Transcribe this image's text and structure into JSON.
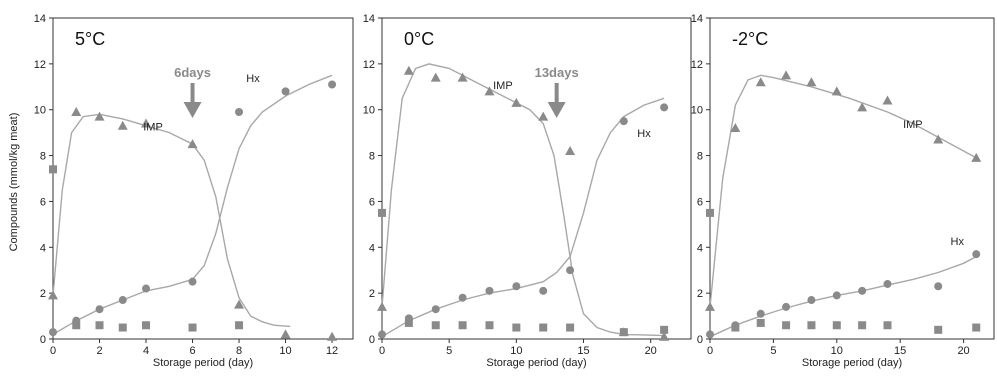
{
  "figure": {
    "ylabel": "Compounds (mmol/kg meat)",
    "xlabel": "Storage period (day)"
  },
  "colors": {
    "marker": "#8a8a8a",
    "curve": "#a8a8a8",
    "arrow": "#8a8a8a",
    "frame": "#333333"
  },
  "chart_data": [
    {
      "type": "scatter",
      "title": "5°C",
      "xlabel": "Storage period (day)",
      "ylabel": "Compounds (mmol/kg meat)",
      "xlim": [
        0,
        12.9
      ],
      "ylim": [
        0,
        14
      ],
      "xticks": [
        0,
        2,
        4,
        6,
        8,
        10,
        12
      ],
      "yticks": [
        0,
        2,
        4,
        6,
        8,
        10,
        12,
        14
      ],
      "grid": false,
      "arrow": {
        "label": "6days",
        "x": 6
      },
      "series": [
        {
          "name": "IMP",
          "marker": "triangle",
          "x": [
            0,
            1,
            2,
            3,
            4,
            6,
            8,
            10,
            12
          ],
          "y": [
            1.9,
            9.9,
            9.7,
            9.3,
            9.4,
            8.5,
            1.5,
            0.2,
            0.1
          ],
          "curve": [
            [
              0,
              1.9
            ],
            [
              0.4,
              6.5
            ],
            [
              0.8,
              9.0
            ],
            [
              1.3,
              9.7
            ],
            [
              2,
              9.8
            ],
            [
              3,
              9.6
            ],
            [
              4,
              9.3
            ],
            [
              5,
              9.0
            ],
            [
              6,
              8.5
            ],
            [
              6.5,
              7.8
            ],
            [
              7,
              6.2
            ],
            [
              7.5,
              3.5
            ],
            [
              8,
              1.8
            ],
            [
              8.5,
              1.0
            ],
            [
              9,
              0.75
            ],
            [
              9.5,
              0.6
            ],
            [
              10.2,
              0.55
            ]
          ]
        },
        {
          "name": "Hx",
          "marker": "circle",
          "x": [
            0,
            1,
            2,
            3,
            4,
            6,
            8,
            10,
            12
          ],
          "y": [
            0.3,
            0.8,
            1.3,
            1.7,
            2.2,
            2.5,
            9.9,
            10.8,
            11.1
          ],
          "curve": [
            [
              0,
              0.2
            ],
            [
              1,
              0.8
            ],
            [
              2,
              1.3
            ],
            [
              3,
              1.7
            ],
            [
              4,
              2.1
            ],
            [
              5,
              2.3
            ],
            [
              6,
              2.6
            ],
            [
              6.5,
              3.2
            ],
            [
              7,
              4.6
            ],
            [
              7.5,
              6.6
            ],
            [
              8,
              8.3
            ],
            [
              8.5,
              9.3
            ],
            [
              9,
              9.9
            ],
            [
              10,
              10.6
            ],
            [
              11,
              11.1
            ],
            [
              12,
              11.5
            ]
          ]
        },
        {
          "name": "",
          "marker": "square",
          "x": [
            0,
            1,
            2,
            3,
            4,
            6,
            8
          ],
          "y": [
            7.4,
            0.6,
            0.6,
            0.5,
            0.6,
            0.5,
            0.6
          ]
        }
      ],
      "annotations": [
        {
          "text": "Hx",
          "x": 8.6,
          "y": 11.2
        },
        {
          "text": "IMP",
          "x": 4.3,
          "y": 9.1
        }
      ]
    },
    {
      "type": "scatter",
      "title": "0°C",
      "xlabel": "Storage period (day)",
      "ylabel": "",
      "xlim": [
        0,
        23
      ],
      "ylim": [
        0,
        14
      ],
      "xticks": [
        0,
        5,
        10,
        15,
        20
      ],
      "yticks": [
        0,
        2,
        4,
        6,
        8,
        10,
        12,
        14
      ],
      "grid": false,
      "arrow": {
        "label": "13days",
        "x": 13
      },
      "series": [
        {
          "name": "IMP",
          "marker": "triangle",
          "x": [
            0,
            2,
            4,
            6,
            8,
            10,
            12,
            14,
            18,
            21
          ],
          "y": [
            1.4,
            11.7,
            11.4,
            11.4,
            10.8,
            10.3,
            9.7,
            8.2,
            0.3,
            0.1
          ],
          "curve": [
            [
              0,
              1.4
            ],
            [
              0.7,
              6.5
            ],
            [
              1.5,
              10.5
            ],
            [
              2.5,
              11.8
            ],
            [
              3.5,
              12.0
            ],
            [
              5,
              11.8
            ],
            [
              7,
              11.2
            ],
            [
              9,
              10.6
            ],
            [
              11,
              10.0
            ],
            [
              12,
              9.4
            ],
            [
              12.8,
              8.0
            ],
            [
              13.5,
              5.5
            ],
            [
              14.2,
              2.8
            ],
            [
              15,
              1.1
            ],
            [
              16,
              0.5
            ],
            [
              17,
              0.3
            ],
            [
              18,
              0.2
            ],
            [
              21,
              0.15
            ]
          ]
        },
        {
          "name": "Hx",
          "marker": "circle",
          "x": [
            0,
            2,
            4,
            6,
            8,
            10,
            12,
            14,
            18,
            21
          ],
          "y": [
            0.2,
            0.9,
            1.3,
            1.8,
            2.1,
            2.3,
            2.1,
            3.0,
            9.5,
            10.1
          ],
          "curve": [
            [
              0,
              0.1
            ],
            [
              2,
              0.8
            ],
            [
              4,
              1.3
            ],
            [
              6,
              1.7
            ],
            [
              8,
              2.0
            ],
            [
              10,
              2.2
            ],
            [
              12,
              2.5
            ],
            [
              13,
              2.9
            ],
            [
              14,
              3.6
            ],
            [
              15,
              5.5
            ],
            [
              16,
              7.8
            ],
            [
              17,
              9.0
            ],
            [
              18,
              9.7
            ],
            [
              19.5,
              10.2
            ],
            [
              21,
              10.5
            ]
          ]
        },
        {
          "name": "",
          "marker": "square",
          "x": [
            0,
            2,
            4,
            6,
            8,
            10,
            12,
            14,
            18,
            21
          ],
          "y": [
            5.5,
            0.7,
            0.6,
            0.6,
            0.6,
            0.5,
            0.5,
            0.5,
            0.3,
            0.4
          ]
        }
      ],
      "annotations": [
        {
          "text": "Hx",
          "x": 19.5,
          "y": 8.8
        },
        {
          "text": "IMP",
          "x": 9.0,
          "y": 10.9
        }
      ]
    },
    {
      "type": "scatter",
      "title": "-2°C",
      "xlabel": "Storage period (day)",
      "ylabel": "",
      "xlim": [
        0,
        22.4
      ],
      "ylim": [
        0,
        14
      ],
      "xticks": [
        0,
        5,
        10,
        15,
        20
      ],
      "yticks": [
        0,
        2,
        4,
        6,
        8,
        10,
        12,
        14
      ],
      "grid": false,
      "series": [
        {
          "name": "IMP",
          "marker": "triangle",
          "x": [
            0,
            2,
            4,
            6,
            8,
            10,
            12,
            14,
            18,
            21
          ],
          "y": [
            1.4,
            9.2,
            11.2,
            11.5,
            11.2,
            10.8,
            10.1,
            10.4,
            8.7,
            7.9
          ],
          "curve": [
            [
              0,
              1.4
            ],
            [
              1,
              7.0
            ],
            [
              2,
              10.2
            ],
            [
              3,
              11.3
            ],
            [
              4,
              11.5
            ],
            [
              5,
              11.4
            ],
            [
              8,
              11.0
            ],
            [
              11,
              10.5
            ],
            [
              14,
              9.9
            ],
            [
              16,
              9.4
            ],
            [
              18,
              8.8
            ],
            [
              21,
              7.9
            ]
          ]
        },
        {
          "name": "Hx",
          "marker": "circle",
          "x": [
            0,
            2,
            4,
            6,
            8,
            10,
            12,
            14,
            18,
            21
          ],
          "y": [
            0.2,
            0.6,
            1.1,
            1.4,
            1.7,
            1.9,
            2.1,
            2.4,
            2.3,
            3.7
          ],
          "curve": [
            [
              0,
              0.1
            ],
            [
              2,
              0.6
            ],
            [
              4,
              1.0
            ],
            [
              6,
              1.35
            ],
            [
              8,
              1.65
            ],
            [
              10,
              1.9
            ],
            [
              12,
              2.1
            ],
            [
              14,
              2.35
            ],
            [
              16,
              2.6
            ],
            [
              18,
              2.9
            ],
            [
              20,
              3.3
            ],
            [
              21,
              3.6
            ]
          ]
        },
        {
          "name": "",
          "marker": "square",
          "x": [
            0,
            2,
            4,
            6,
            8,
            10,
            12,
            14,
            18,
            21
          ],
          "y": [
            5.5,
            0.5,
            0.7,
            0.6,
            0.6,
            0.6,
            0.6,
            0.6,
            0.4,
            0.5
          ]
        }
      ],
      "annotations": [
        {
          "text": "IMP",
          "x": 16.0,
          "y": 9.2
        },
        {
          "text": "Hx",
          "x": 19.5,
          "y": 4.1
        }
      ]
    }
  ]
}
